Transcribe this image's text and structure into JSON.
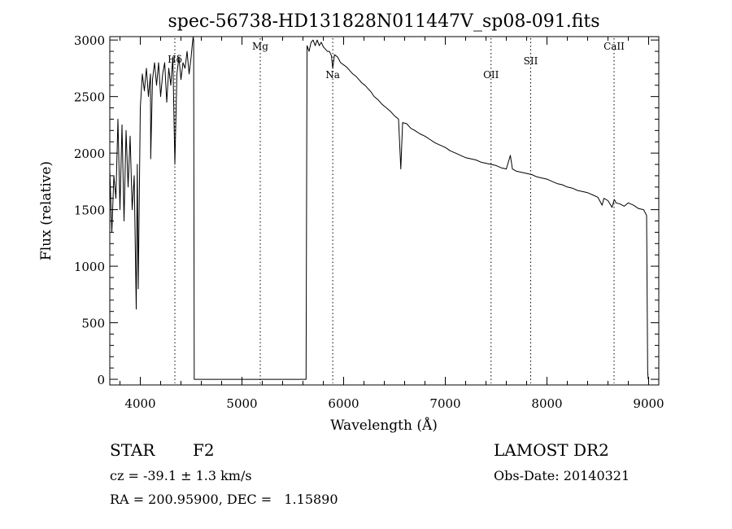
{
  "chart_data": {
    "type": "line",
    "title": "spec-56738-HD131828N011447V_sp08-091.fits",
    "xlabel": "Wavelength (Å)",
    "ylabel": "Flux (relative)",
    "xlim": [
      3700,
      9100
    ],
    "ylim": [
      -50,
      3030
    ],
    "x_ticks": [
      4000,
      5000,
      6000,
      7000,
      8000,
      9000
    ],
    "x_tick_labels": [
      "4000",
      "5000",
      "6000",
      "7000",
      "8000",
      "9000"
    ],
    "y_ticks": [
      0,
      500,
      1000,
      1500,
      2000,
      2500,
      3000
    ],
    "y_tick_labels": [
      "0",
      "500",
      "1000",
      "1500",
      "2000",
      "2500",
      "3000"
    ],
    "grid": false,
    "lines": [
      {
        "label": "Hδ",
        "x": 4340
      },
      {
        "label": "Mg",
        "x": 5180
      },
      {
        "label": "Na",
        "x": 5893
      },
      {
        "label": "OII",
        "x": 7450
      },
      {
        "label": "SII",
        "x": 7840
      },
      {
        "label": "CaII",
        "x": 8660
      }
    ],
    "series": [
      {
        "x": [
          3700,
          3720,
          3740,
          3760,
          3780,
          3800,
          3820,
          3840,
          3860,
          3880,
          3900,
          3920,
          3940,
          3960,
          3970,
          3980,
          4000,
          4020,
          4040,
          4060,
          4080,
          4100,
          4102,
          4120,
          4140,
          4160,
          4180,
          4200,
          4220,
          4240,
          4260,
          4280,
          4300,
          4320,
          4340,
          4360,
          4380,
          4400,
          4420,
          4440,
          4460,
          4480,
          4500,
          4510,
          4520,
          4525,
          4530,
          5630,
          5635,
          5640,
          5660,
          5680,
          5700,
          5720,
          5740,
          5760,
          5780,
          5800,
          5820,
          5840,
          5860,
          5880,
          5893,
          5910,
          5940,
          5970,
          6000,
          6030,
          6060,
          6090,
          6120,
          6150,
          6180,
          6210,
          6240,
          6270,
          6300,
          6340,
          6380,
          6420,
          6460,
          6500,
          6540,
          6562,
          6580,
          6620,
          6660,
          6700,
          6750,
          6800,
          6850,
          6900,
          6950,
          7000,
          7050,
          7100,
          7150,
          7200,
          7250,
          7300,
          7350,
          7400,
          7450,
          7500,
          7550,
          7600,
          7640,
          7660,
          7700,
          7750,
          7800,
          7850,
          7900,
          7950,
          8000,
          8050,
          8100,
          8150,
          8200,
          8250,
          8300,
          8350,
          8400,
          8450,
          8500,
          8542,
          8560,
          8600,
          8640,
          8662,
          8680,
          8720,
          8760,
          8800,
          8850,
          8900,
          8950,
          8980,
          8990,
          8995
        ],
        "y": [
          1850,
          1300,
          1800,
          1600,
          2300,
          1500,
          2250,
          1400,
          2200,
          1700,
          2150,
          1500,
          1800,
          620,
          1900,
          800,
          2400,
          2700,
          2550,
          2750,
          2500,
          2700,
          1950,
          2650,
          2800,
          2600,
          2800,
          2500,
          2700,
          2800,
          2450,
          2750,
          2600,
          2850,
          1900,
          2700,
          2850,
          2650,
          2800,
          2750,
          2900,
          2700,
          2850,
          2950,
          3030,
          3000,
          0,
          0,
          1500,
          2950,
          2900,
          2980,
          3000,
          2950,
          3000,
          2950,
          2980,
          2940,
          2920,
          2900,
          2900,
          2860,
          2750,
          2870,
          2850,
          2800,
          2780,
          2760,
          2730,
          2700,
          2680,
          2650,
          2620,
          2600,
          2570,
          2540,
          2500,
          2470,
          2430,
          2400,
          2370,
          2330,
          2300,
          1860,
          2270,
          2260,
          2220,
          2200,
          2170,
          2150,
          2120,
          2090,
          2070,
          2050,
          2020,
          2000,
          1980,
          1960,
          1950,
          1940,
          1920,
          1910,
          1900,
          1890,
          1870,
          1860,
          1980,
          1860,
          1840,
          1830,
          1820,
          1810,
          1790,
          1780,
          1770,
          1750,
          1730,
          1720,
          1700,
          1690,
          1670,
          1660,
          1650,
          1630,
          1610,
          1540,
          1600,
          1580,
          1520,
          1590,
          1560,
          1550,
          1530,
          1560,
          1540,
          1510,
          1500,
          1450,
          80,
          0
        ]
      }
    ]
  },
  "info": {
    "class": "STAR",
    "subclass": "F2",
    "survey": "LAMOST DR2",
    "cz": "cz = -39.1 ± 1.3 km/s",
    "obs_date": "Obs-Date: 20140321",
    "coords": "RA = 200.95900, DEC =   1.15890"
  }
}
